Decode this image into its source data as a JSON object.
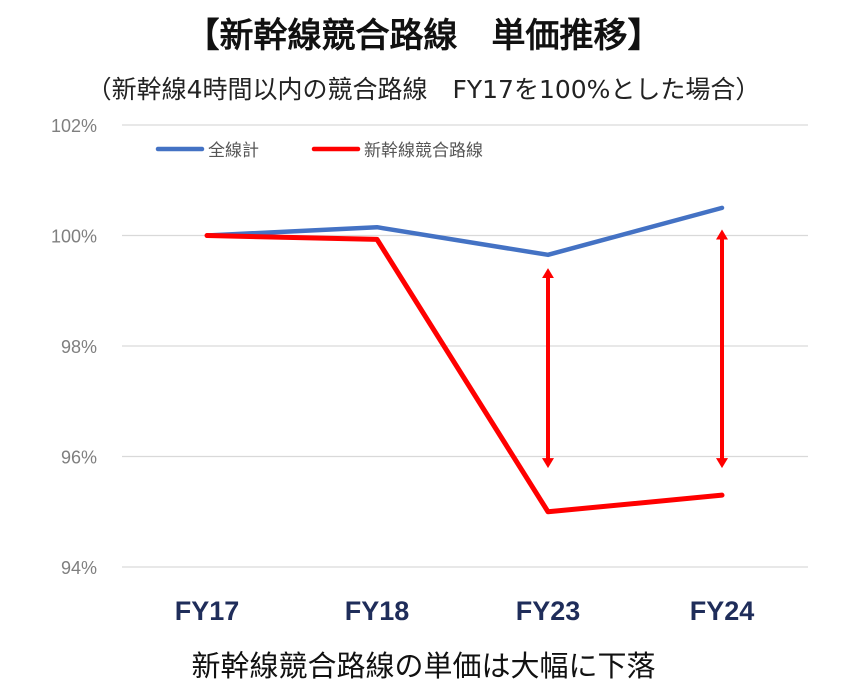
{
  "title": "【新幹線競合路線　単価推移】",
  "subtitle": "（新幹線4時間以内の競合路線　FY17を100%とした場合）",
  "caption": "新幹線競合路線の単価は大幅に下落",
  "chart_data": {
    "type": "line",
    "categories": [
      "FY17",
      "FY18",
      "FY23",
      "FY24"
    ],
    "series": [
      {
        "name": "全線計",
        "values": [
          100.0,
          100.15,
          99.65,
          100.5
        ],
        "color": "#4472c4"
      },
      {
        "name": "新幹線競合路線",
        "values": [
          100.0,
          99.93,
          95.0,
          95.3
        ],
        "color": "#ff0000"
      }
    ],
    "yticks": [
      "94%",
      "96%",
      "98%",
      "100%",
      "102%"
    ],
    "ylim": [
      94,
      102
    ],
    "grid": true,
    "legend": "top-left",
    "annotations": [
      {
        "type": "double-arrow",
        "category": "FY23",
        "from": 99.5,
        "to": 95.7,
        "color": "#ff0000"
      },
      {
        "type": "double-arrow",
        "category": "FY24",
        "from": 100.2,
        "to": 95.7,
        "color": "#ff0000"
      }
    ]
  }
}
